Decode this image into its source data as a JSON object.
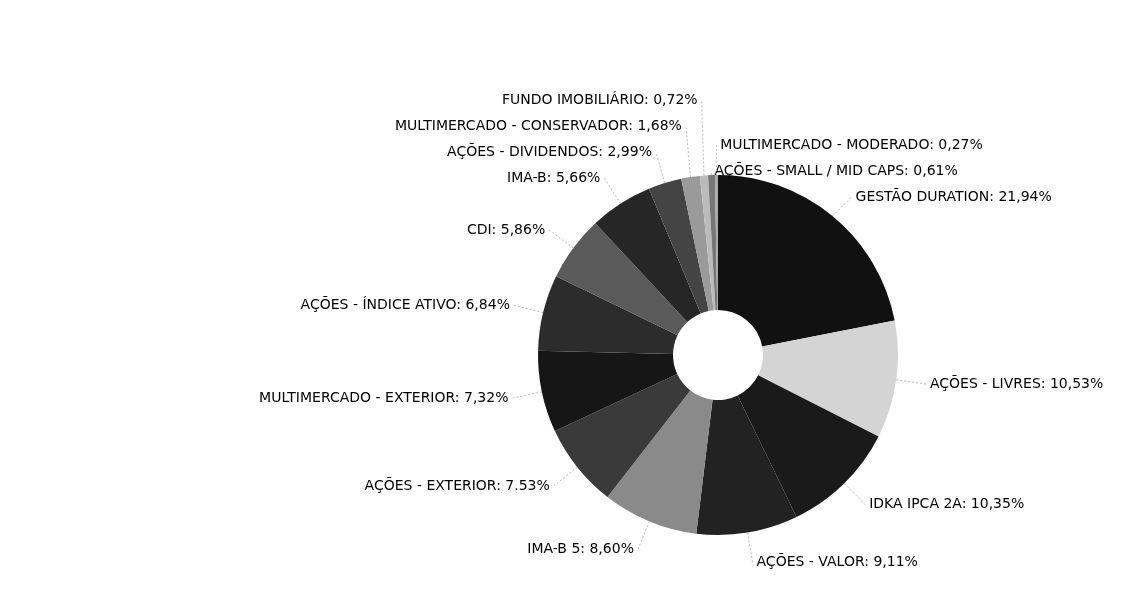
{
  "chart_data": {
    "type": "donut",
    "categories": [
      "GESTÃO DURATION",
      "AÇÕES - LIVRES",
      "IDKA IPCA 2A",
      "AÇÕES - VALOR",
      "IMA-B 5",
      "AÇÕES - EXTERIOR",
      "MULTIMERCADO - EXTERIOR",
      "AÇÕES - ÍNDICE ATIVO",
      "CDI",
      "IMA-B",
      "AÇÕES - DIVIDENDOS",
      "MULTIMERCADO - CONSERVADOR",
      "FUNDO IMOBILIÁRIO",
      "AÇÕES - SMALL / MID CAPS",
      "MULTIMERCADO - MODERADO"
    ],
    "values": [
      21.94,
      10.53,
      10.35,
      9.11,
      8.6,
      7.53,
      7.32,
      6.84,
      5.86,
      5.66,
      2.99,
      1.68,
      0.72,
      0.61,
      0.27
    ],
    "value_labels": [
      "21,94%",
      "10,53%",
      "10,35%",
      "9,11%",
      "8,60%",
      "7.53%",
      "7,32%",
      "6,84%",
      "5,86%",
      "5,66%",
      "2,99%",
      "1,68%",
      "0,72%",
      "0,61%",
      "0,27%"
    ],
    "colors": [
      "#111111",
      "#d4d4d4",
      "#1a1a1a",
      "#222222",
      "#8a8a8a",
      "#3a3a3a",
      "#161616",
      "#2c2c2c",
      "#5a5a5a",
      "#262626",
      "#444444",
      "#9a9a9a",
      "#bbbbbb",
      "#777777",
      "#aaaaaa"
    ]
  }
}
